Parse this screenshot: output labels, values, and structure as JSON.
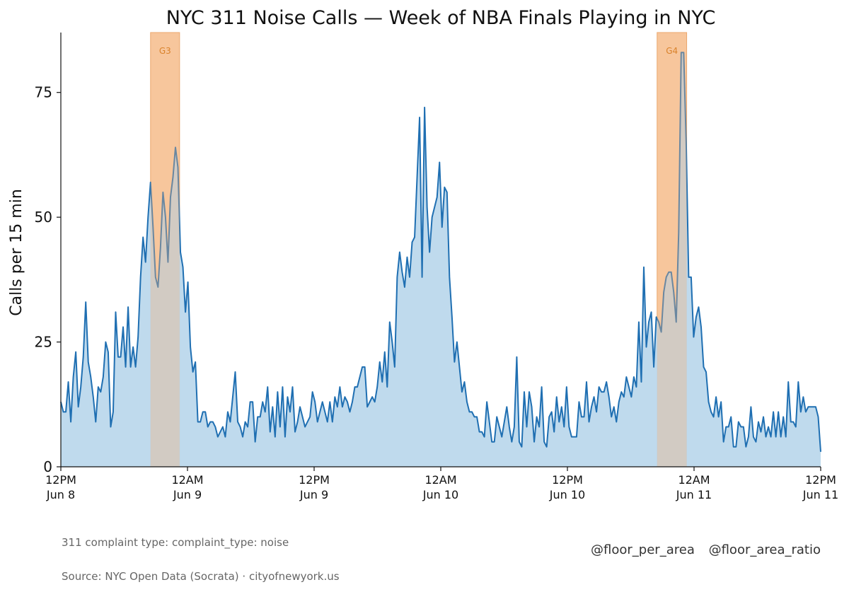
{
  "chart_data": {
    "type": "area",
    "title": "NYC 311 Noise Calls — Week of NBA Finals Playing in NYC",
    "xlabel": "",
    "ylabel": "Calls per 15 min",
    "ylim": [
      0,
      87
    ],
    "yticks": [
      0,
      25,
      50,
      75
    ],
    "x_unit": "15-minute intervals from Jun 8 12PM to Jun 11 12PM",
    "x_tick_labels": [
      {
        "top": "12PM",
        "bottom": "Jun 8"
      },
      {
        "top": "12AM",
        "bottom": "Jun 9"
      },
      {
        "top": "12PM",
        "bottom": "Jun 9"
      },
      {
        "top": "12AM",
        "bottom": "Jun 10"
      },
      {
        "top": "12PM",
        "bottom": "Jun 10"
      },
      {
        "top": "12AM",
        "bottom": "Jun 11"
      },
      {
        "top": "12PM",
        "bottom": "Jun 11"
      }
    ],
    "bands": [
      {
        "label": "G3",
        "start_hour": 8.5,
        "end_hour": 11.25
      },
      {
        "label": "G4",
        "start_hour": 56.5,
        "end_hour": 59.3
      }
    ],
    "series": [
      {
        "values": [
          13,
          11,
          11,
          17,
          9,
          18,
          23,
          12,
          16,
          22,
          33,
          21,
          18,
          14,
          9,
          16,
          15,
          18,
          25,
          23,
          8,
          11,
          31,
          22,
          22,
          28,
          20,
          32,
          20,
          24,
          20,
          26,
          38,
          46,
          41,
          50,
          57,
          48,
          38,
          36,
          44,
          55,
          50,
          41,
          54,
          58,
          64,
          60,
          43,
          40,
          31,
          37,
          24,
          19,
          21,
          9,
          9,
          11,
          11,
          8,
          9,
          9,
          8,
          6,
          7,
          8,
          6,
          11,
          9,
          14,
          19,
          9,
          8,
          6,
          9,
          8,
          13,
          13,
          5,
          10,
          10,
          13,
          11,
          16,
          7,
          12,
          6,
          15,
          8,
          16,
          6,
          14,
          11,
          16,
          7,
          9,
          12,
          10,
          8,
          9,
          10,
          15,
          13,
          9,
          11,
          13,
          11,
          9,
          13,
          9,
          14,
          12,
          16,
          12,
          14,
          13,
          11,
          13,
          16,
          16,
          18,
          20,
          20,
          12,
          13,
          14,
          13,
          16,
          21,
          17,
          23,
          16,
          29,
          25,
          20,
          38,
          43,
          39,
          36,
          42,
          38,
          45,
          46,
          58,
          70,
          38,
          72,
          52,
          43,
          50,
          52,
          54,
          61,
          48,
          56,
          55,
          38,
          30,
          21,
          25,
          20,
          15,
          17,
          13,
          11,
          11,
          10,
          10,
          7,
          7,
          6,
          13,
          9,
          5,
          5,
          10,
          8,
          6,
          9,
          12,
          8,
          5,
          8,
          22,
          5,
          4,
          15,
          8,
          15,
          12,
          5,
          10,
          8,
          16,
          5,
          4,
          10,
          11,
          7,
          14,
          9,
          12,
          8,
          16,
          8,
          6,
          6,
          6,
          13,
          10,
          10,
          17,
          9,
          12,
          14,
          11,
          16,
          15,
          15,
          17,
          14,
          10,
          12,
          9,
          13,
          15,
          14,
          18,
          16,
          14,
          18,
          16,
          29,
          17,
          40,
          24,
          29,
          31,
          20,
          30,
          29,
          27,
          35,
          38,
          39,
          39,
          35,
          29,
          47,
          83,
          83,
          65,
          38,
          38,
          26,
          30,
          32,
          28,
          20,
          19,
          13,
          11,
          10,
          14,
          10,
          13,
          5,
          8,
          8,
          10,
          4,
          4,
          9,
          8,
          8,
          4,
          6,
          12,
          6,
          5,
          9,
          7,
          10,
          6,
          8,
          6,
          11,
          6,
          11,
          6,
          10,
          6,
          17,
          9,
          9,
          8,
          17,
          11,
          14,
          11,
          12,
          12,
          12,
          12,
          10,
          3
        ]
      }
    ]
  },
  "notes": {
    "complaint_type": "311 complaint type: complaint_type: noise",
    "source": "Source: NYC Open Data (Socrata) · cityofnewyork.us"
  },
  "credits": {
    "handle_1": "@floor_per_area",
    "handle_2": "@floor_area_ratio"
  },
  "colors": {
    "line": "#1f6fb2",
    "fill": "#bcd8ec",
    "band": "#f5b57f",
    "band_label": "#d9822b",
    "axis": "#111111"
  }
}
